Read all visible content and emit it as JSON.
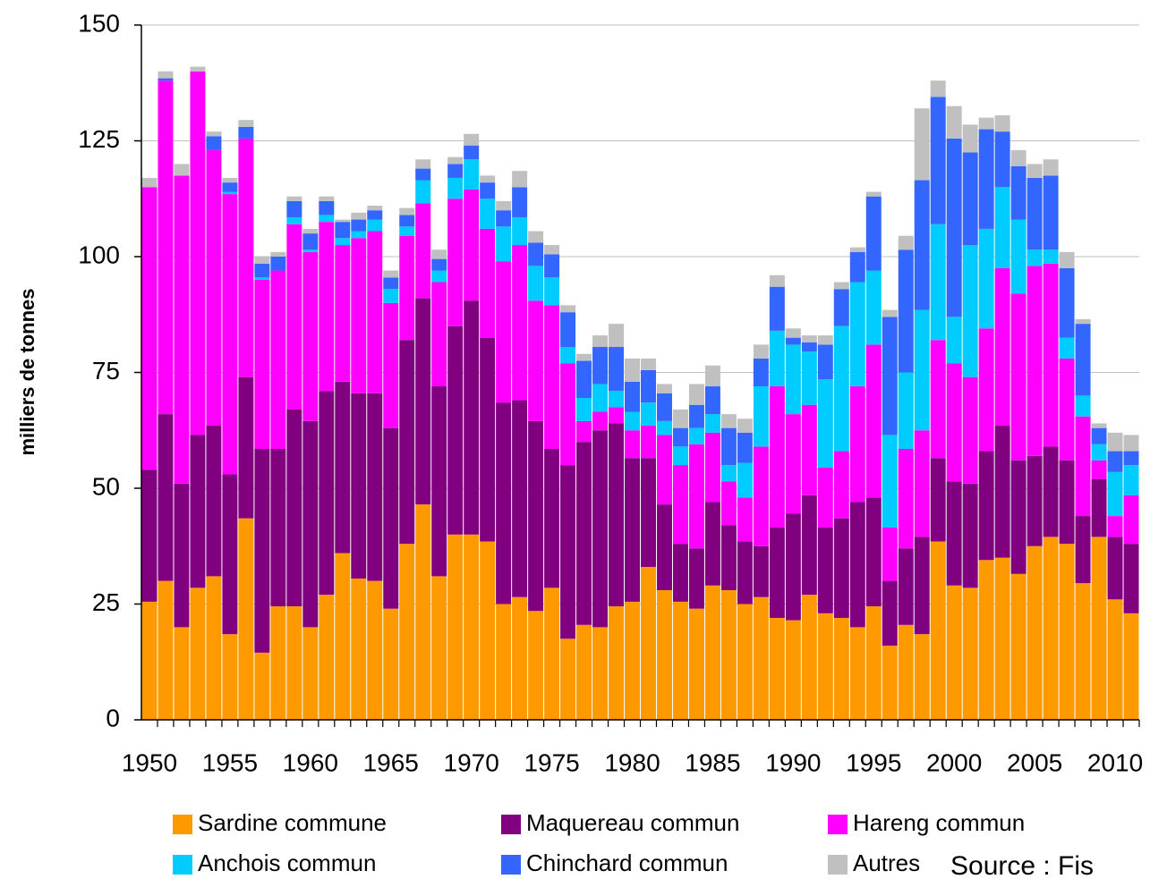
{
  "chart_data": {
    "type": "stacked_bar",
    "y_label": "milliers de tonnes",
    "source": "Source : Fis",
    "x": [
      1950,
      1951,
      1952,
      1953,
      1954,
      1955,
      1956,
      1957,
      1958,
      1959,
      1960,
      1961,
      1962,
      1963,
      1964,
      1965,
      1966,
      1967,
      1968,
      1969,
      1970,
      1971,
      1972,
      1973,
      1974,
      1975,
      1976,
      1977,
      1978,
      1979,
      1980,
      1981,
      1982,
      1983,
      1984,
      1985,
      1986,
      1987,
      1988,
      1989,
      1990,
      1991,
      1992,
      1993,
      1994,
      1995,
      1996,
      1997,
      1998,
      1999,
      2000,
      2001,
      2002,
      2003,
      2004,
      2005,
      2006,
      2007,
      2008,
      2009,
      2010,
      2011
    ],
    "xlim": [
      1949.5,
      2011.5
    ],
    "xticks": [
      1950,
      1955,
      1960,
      1965,
      1970,
      1975,
      1980,
      1985,
      1990,
      1995,
      2000,
      2005,
      2010
    ],
    "ylim": [
      0,
      150
    ],
    "yticks": [
      0,
      25,
      50,
      75,
      100,
      125,
      150
    ],
    "grid": true,
    "series": [
      {
        "name": "Sardine commune",
        "color": "#FF9900",
        "values": [
          25.5,
          30,
          20,
          28.5,
          31,
          18.5,
          43.5,
          14.5,
          24.5,
          24.5,
          20,
          27,
          36,
          30.5,
          30,
          24,
          38,
          46.5,
          31,
          40,
          40,
          38.5,
          25,
          26.5,
          23.5,
          28.5,
          17.5,
          20.5,
          20,
          24.5,
          25.5,
          33,
          28,
          25.5,
          24,
          29,
          28,
          25,
          26.5,
          22,
          21.5,
          27,
          23,
          22,
          20,
          24.5,
          16,
          20.5,
          18.5,
          38.5,
          29,
          28.5,
          34.5,
          35,
          31.5,
          37.5,
          39.5,
          38,
          29.5,
          39.5,
          26,
          23
        ]
      },
      {
        "name": "Maquereau commun",
        "color": "#800080",
        "values": [
          28.5,
          36,
          31,
          33,
          32.5,
          34.5,
          30.5,
          44,
          34,
          42.5,
          44.5,
          44,
          37,
          40,
          40.5,
          39,
          44,
          44.5,
          41,
          45,
          50.5,
          44,
          43.5,
          42.5,
          41,
          30,
          37.5,
          39.5,
          42.5,
          39.5,
          31,
          23.5,
          18.5,
          12.5,
          13,
          18,
          14,
          13.5,
          11,
          19.5,
          23,
          21.5,
          18.5,
          21.5,
          27,
          23.5,
          14,
          16.5,
          21,
          18,
          22.5,
          22.5,
          23.5,
          28.5,
          24.5,
          19.5,
          19.5,
          18,
          14.5,
          12.5,
          13.5,
          15
        ]
      },
      {
        "name": "Hareng commun",
        "color": "#FF00FF",
        "values": [
          61,
          72,
          66.5,
          78.5,
          59.5,
          60.5,
          51.5,
          36.5,
          38.5,
          40,
          36.5,
          36.5,
          29.5,
          33.5,
          35,
          27,
          22.5,
          20.5,
          22.5,
          27.5,
          24,
          23.5,
          30.5,
          33.5,
          26,
          31,
          22,
          4.5,
          4,
          3.5,
          6,
          7,
          15,
          17,
          22.5,
          15,
          9.5,
          9.5,
          21.5,
          30.5,
          21.5,
          19.5,
          13,
          14.5,
          25,
          33,
          11.5,
          21.5,
          23,
          25.5,
          25.5,
          23,
          26.5,
          34,
          36,
          41,
          39.5,
          22,
          21.5,
          4,
          4.5,
          10.5
        ]
      },
      {
        "name": "Anchois commun",
        "color": "#00CCFF",
        "values": [
          0,
          0,
          0,
          0,
          0,
          0.5,
          0,
          0.5,
          0,
          1.5,
          0.5,
          1.5,
          1.5,
          1.5,
          2.5,
          3,
          2,
          5,
          2.5,
          4.5,
          6.5,
          6.5,
          7.5,
          6,
          7.5,
          6,
          3.5,
          5,
          6,
          3.5,
          4,
          5,
          3,
          4,
          3.5,
          4,
          3.5,
          7.5,
          13,
          12,
          15,
          11.5,
          19,
          27,
          22.5,
          16,
          20,
          16.5,
          26,
          25,
          10,
          28.5,
          21.5,
          17.5,
          16,
          3.5,
          3,
          4.5,
          4.5,
          3.5,
          9.5,
          6.5
        ]
      },
      {
        "name": "Chinchard commun",
        "color": "#3366FF",
        "values": [
          0,
          0.5,
          0,
          0,
          3,
          2,
          2.5,
          3,
          3,
          3.5,
          3.5,
          3,
          3.5,
          2.5,
          2,
          2.5,
          2.5,
          2.5,
          2.5,
          3,
          3,
          3.5,
          3.5,
          6.5,
          5,
          5,
          7.5,
          8,
          8,
          9.5,
          6.5,
          7,
          6,
          4,
          5,
          6,
          8,
          6.5,
          6,
          9.5,
          1.5,
          2,
          7.5,
          8,
          6.5,
          16,
          25.5,
          26.5,
          28,
          27.5,
          38.5,
          20,
          21.5,
          12,
          11.5,
          15.5,
          16,
          15,
          15.5,
          3.5,
          4.5,
          3
        ]
      },
      {
        "name": "Autres",
        "color": "#C0C0C0",
        "values": [
          2,
          1.5,
          2.5,
          1,
          1,
          1,
          1.5,
          1.5,
          1,
          1,
          1,
          1,
          0.5,
          1.5,
          1,
          1.5,
          1.5,
          2,
          2,
          1.5,
          2.5,
          1.5,
          2,
          3.5,
          2.5,
          2,
          1.5,
          1.5,
          2.5,
          5,
          5,
          2.5,
          2,
          4,
          4.5,
          4.5,
          3,
          3,
          3,
          2.5,
          2,
          1.5,
          2,
          1.5,
          1,
          1,
          1.5,
          3,
          15.5,
          3.5,
          7,
          6,
          2.5,
          3.5,
          3.5,
          3,
          3.5,
          3.5,
          1,
          1,
          4,
          3.5
        ]
      }
    ]
  }
}
